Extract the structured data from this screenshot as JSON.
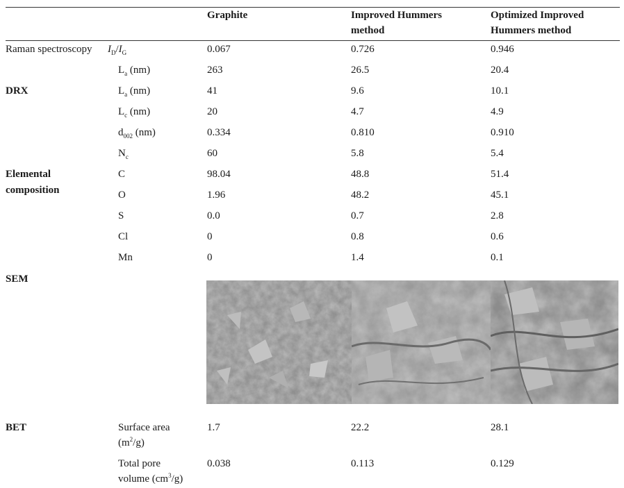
{
  "header": {
    "col1": "Graphite",
    "col2_l1": "Improved Hummers",
    "col2_l2": "method",
    "col3_l1": "Optimized Improved",
    "col3_l2": "Hummers method"
  },
  "raman": {
    "group": "Raman spectroscopy",
    "ratio": {
      "i1": "I",
      "s1": "D",
      "slash": "/",
      "i2": "I",
      "s2": "G",
      "values": [
        "0.067",
        "0.726",
        "0.946"
      ]
    },
    "la": {
      "base": "L",
      "sub": "a",
      "unit": " (nm)",
      "values": [
        "263",
        "26.5",
        "20.4"
      ]
    }
  },
  "drx": {
    "group": "DRX",
    "rows": [
      {
        "base": "L",
        "sub": "a",
        "unit": " (nm)",
        "values": [
          "41",
          "9.6",
          "10.1"
        ]
      },
      {
        "base": "L",
        "sub": "c",
        "unit": " (nm)",
        "values": [
          "20",
          "4.7",
          "4.9"
        ]
      },
      {
        "base": "d",
        "sub": "002",
        "unit": " (nm)",
        "values": [
          "0.334",
          "0.810",
          "0.910"
        ]
      },
      {
        "base": "N",
        "sub": "c",
        "unit": "",
        "values": [
          "60",
          "5.8",
          "5.4"
        ]
      }
    ]
  },
  "elemental": {
    "group_l1": "Elemental",
    "group_l2": "composition",
    "rows": [
      {
        "label": "C",
        "values": [
          "98.04",
          "48.8",
          "51.4"
        ]
      },
      {
        "label": "O",
        "values": [
          "1.96",
          "48.2",
          "45.1"
        ]
      },
      {
        "label": "S",
        "values": [
          "0.0",
          "0.7",
          "2.8"
        ]
      },
      {
        "label": "Cl",
        "values": [
          "0",
          "0.8",
          "0.6"
        ]
      },
      {
        "label": "Mn",
        "values": [
          "0",
          "1.4",
          "0.1"
        ]
      }
    ]
  },
  "sem": {
    "group": "SEM"
  },
  "bet": {
    "group": "BET",
    "surface": {
      "l1": "Surface area",
      "l2a": "(m",
      "sup": "2",
      "l2b": "/g)",
      "values": [
        "1.7",
        "22.2",
        "28.1"
      ]
    },
    "pore": {
      "l1": "Total pore",
      "l2a": "volume (cm",
      "sup": "3",
      "l2b": "/g)",
      "values": [
        "0.038",
        "0.113",
        "0.129"
      ]
    }
  },
  "colors": {
    "rule": "#333333",
    "text": "#1a1a1a",
    "sem_bg": "#8a8a8a"
  }
}
